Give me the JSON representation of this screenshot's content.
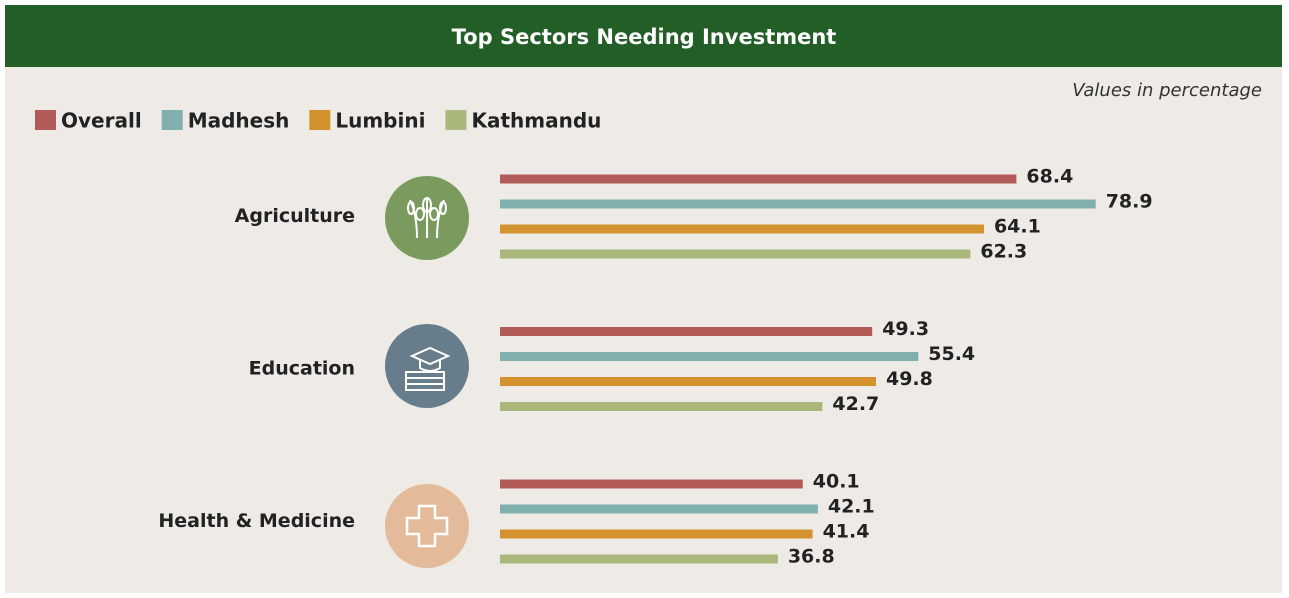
{
  "chart_data": {
    "type": "bar",
    "orientation": "horizontal",
    "title": "Top Sectors Needing Investment",
    "subtitle": "Values in percentage",
    "categories": [
      "Agriculture",
      "Education",
      "Health & Medicine"
    ],
    "series": [
      {
        "name": "Overall",
        "color": "#b35b58",
        "values": [
          68.4,
          49.3,
          40.1
        ]
      },
      {
        "name": "Madhesh",
        "color": "#7fb0ad",
        "values": [
          78.9,
          55.4,
          42.1
        ]
      },
      {
        "name": "Lumbini",
        "color": "#d4922e",
        "values": [
          64.1,
          49.8,
          41.4
        ]
      },
      {
        "name": "Kathmandu",
        "color": "#a9b87a",
        "values": [
          62.3,
          42.7,
          36.8
        ]
      }
    ]
  }
}
